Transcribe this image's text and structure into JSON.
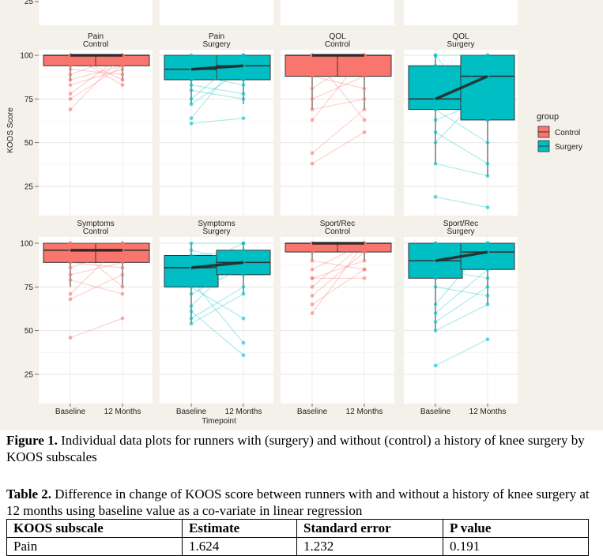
{
  "figure": {
    "legend": {
      "title": "group",
      "items": [
        {
          "label": "Control",
          "color": "#F8766D"
        },
        {
          "label": "Surgery",
          "color": "#00BFC4"
        }
      ]
    },
    "ylabel": "KOOS Score",
    "xlabel": "Timepoint",
    "y_ticks": [
      "100",
      "75",
      "50",
      "25"
    ],
    "x_ticks": [
      "Baseline",
      "12 Months"
    ],
    "top_partial_tick": "25"
  },
  "chart_data": {
    "type": "box",
    "ylabel": "KOOS Score",
    "xlabel": "Timepoint",
    "categories": [
      "Baseline",
      "12 Months"
    ],
    "ylim": [
      10,
      105
    ],
    "grid": true,
    "legend_position": "right",
    "panels": [
      {
        "name": "Pain",
        "group": "Control",
        "color": "#F8766D",
        "baseline": {
          "q1": 94,
          "median": 100,
          "q3": 100,
          "whisker_low": 85,
          "whisker_high": 100
        },
        "followup": {
          "q1": 94,
          "median": 100,
          "q3": 100,
          "whisker_low": 85,
          "whisker_high": 100
        },
        "pairs": [
          [
            100,
            100
          ],
          [
            97,
            100
          ],
          [
            94,
            97
          ],
          [
            92,
            89
          ],
          [
            89,
            100
          ],
          [
            86,
            94
          ],
          [
            83,
            92
          ],
          [
            78,
            100
          ],
          [
            75,
            94
          ],
          [
            69,
            100
          ],
          [
            100,
            83
          ],
          [
            100,
            86
          ]
        ]
      },
      {
        "name": "Pain",
        "group": "Surgery",
        "color": "#00BFC4",
        "baseline": {
          "q1": 86,
          "median": 92,
          "q3": 100,
          "whisker_low": 72,
          "whisker_high": 100
        },
        "followup": {
          "q1": 86,
          "median": 94,
          "q3": 100,
          "whisker_low": 72,
          "whisker_high": 100
        },
        "pairs": [
          [
            100,
            100
          ],
          [
            97,
            94
          ],
          [
            94,
            100
          ],
          [
            92,
            86
          ],
          [
            89,
            83
          ],
          [
            86,
            94
          ],
          [
            83,
            78
          ],
          [
            80,
            75
          ],
          [
            75,
            100
          ],
          [
            72,
            92
          ],
          [
            64,
            100
          ],
          [
            61,
            64
          ]
        ]
      },
      {
        "name": "QOL",
        "group": "Control",
        "color": "#F8766D",
        "baseline": {
          "q1": 88,
          "median": 100,
          "q3": 100,
          "whisker_low": 69,
          "whisker_high": 100
        },
        "followup": {
          "q1": 88,
          "median": 100,
          "q3": 100,
          "whisker_low": 69,
          "whisker_high": 100
        },
        "pairs": [
          [
            100,
            100
          ],
          [
            100,
            94
          ],
          [
            94,
            100
          ],
          [
            88,
            81
          ],
          [
            81,
            100
          ],
          [
            75,
            88
          ],
          [
            69,
            75
          ],
          [
            63,
            100
          ],
          [
            44,
            69
          ],
          [
            38,
            56
          ],
          [
            100,
            63
          ]
        ]
      },
      {
        "name": "QOL",
        "group": "Surgery",
        "color": "#00BFC4",
        "baseline": {
          "q1": 69,
          "median": 75,
          "q3": 94,
          "whisker_low": 38,
          "whisker_high": 100
        },
        "followup": {
          "q1": 63,
          "median": 88,
          "q3": 100,
          "whisker_low": 31,
          "whisker_high": 100
        },
        "pairs": [
          [
            100,
            100
          ],
          [
            94,
            88
          ],
          [
            88,
            100
          ],
          [
            81,
            63
          ],
          [
            75,
            94
          ],
          [
            69,
            50
          ],
          [
            63,
            75
          ],
          [
            56,
            38
          ],
          [
            50,
            81
          ],
          [
            38,
            31
          ],
          [
            19,
            13
          ],
          [
            100,
            63
          ]
        ]
      },
      {
        "name": "Symptoms",
        "group": "Control",
        "color": "#F8766D",
        "baseline": {
          "q1": 89,
          "median": 96,
          "q3": 100,
          "whisker_low": 75,
          "whisker_high": 100
        },
        "followup": {
          "q1": 89,
          "median": 96,
          "q3": 100,
          "whisker_low": 75,
          "whisker_high": 100
        },
        "pairs": [
          [
            100,
            100
          ],
          [
            96,
            93
          ],
          [
            93,
            100
          ],
          [
            89,
            86
          ],
          [
            86,
            96
          ],
          [
            82,
            89
          ],
          [
            79,
            71
          ],
          [
            71,
            100
          ],
          [
            68,
            82
          ],
          [
            46,
            57
          ],
          [
            100,
            75
          ]
        ]
      },
      {
        "name": "Symptoms",
        "group": "Surgery",
        "color": "#00BFC4",
        "baseline": {
          "q1": 75,
          "median": 86,
          "q3": 93,
          "whisker_low": 54,
          "whisker_high": 100
        },
        "followup": {
          "q1": 82,
          "median": 89,
          "q3": 96,
          "whisker_low": 71,
          "whisker_high": 100
        },
        "pairs": [
          [
            100,
            100
          ],
          [
            96,
            89
          ],
          [
            93,
            96
          ],
          [
            89,
            82
          ],
          [
            86,
            100
          ],
          [
            79,
            43
          ],
          [
            75,
            57
          ],
          [
            71,
            86
          ],
          [
            64,
            93
          ],
          [
            61,
            36
          ],
          [
            57,
            75
          ],
          [
            54,
            71
          ]
        ]
      },
      {
        "name": "Sport/Rec",
        "group": "Control",
        "color": "#F8766D",
        "baseline": {
          "q1": 95,
          "median": 100,
          "q3": 100,
          "whisker_low": 90,
          "whisker_high": 100
        },
        "followup": {
          "q1": 95,
          "median": 100,
          "q3": 100,
          "whisker_low": 90,
          "whisker_high": 100
        },
        "pairs": [
          [
            100,
            100
          ],
          [
            100,
            95
          ],
          [
            95,
            100
          ],
          [
            90,
            85
          ],
          [
            85,
            100
          ],
          [
            80,
            90
          ],
          [
            80,
            80
          ],
          [
            75,
            100
          ],
          [
            70,
            95
          ],
          [
            65,
            85
          ],
          [
            60,
            100
          ]
        ]
      },
      {
        "name": "Sport/Rec",
        "group": "Surgery",
        "color": "#00BFC4",
        "baseline": {
          "q1": 80,
          "median": 90,
          "q3": 100,
          "whisker_low": 50,
          "whisker_high": 100
        },
        "followup": {
          "q1": 85,
          "median": 95,
          "q3": 100,
          "whisker_low": 65,
          "whisker_high": 100
        },
        "pairs": [
          [
            100,
            100
          ],
          [
            95,
            90
          ],
          [
            90,
            100
          ],
          [
            85,
            80
          ],
          [
            80,
            95
          ],
          [
            75,
            70
          ],
          [
            65,
            100
          ],
          [
            60,
            85
          ],
          [
            55,
            75
          ],
          [
            50,
            65
          ],
          [
            30,
            45
          ],
          [
            100,
            95
          ]
        ]
      }
    ]
  },
  "caption1": {
    "label": "Figure 1.",
    "text": " Individual data plots for runners with (surgery) and without (control) a history of knee surgery by KOOS subscales"
  },
  "caption2": {
    "label": "Table 2.",
    "text": " Difference in change of KOOS score between runners with and without a history of knee surgery at 12 months using baseline value as a co-variate in linear regression"
  },
  "table": {
    "headers": [
      "KOOS subscale",
      "Estimate",
      "Standard error",
      "P value"
    ],
    "rows": [
      [
        "Pain",
        "1.624",
        "1.232",
        "0.191"
      ]
    ]
  }
}
